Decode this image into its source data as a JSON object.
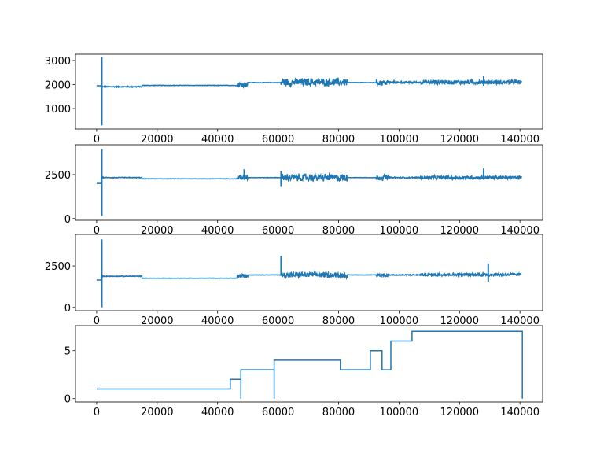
{
  "chart_data": [
    {
      "type": "line",
      "title": "",
      "xlabel": "",
      "ylabel": "",
      "xlim": [
        -7000,
        147500
      ],
      "ylim": [
        150,
        3260
      ],
      "xticks": [
        0,
        20000,
        40000,
        60000,
        80000,
        100000,
        120000,
        140000
      ],
      "yticks": [
        1000,
        2000,
        3000
      ],
      "color": "#1f77b4",
      "grid": false,
      "segments": [
        {
          "x": [
            0,
            1500
          ],
          "level": 1950,
          "noise": 0
        },
        {
          "x": [
            1500,
            15000
          ],
          "level": 1910,
          "noise": 25
        },
        {
          "x": [
            15000,
            46500
          ],
          "level": 1965,
          "noise": 12
        },
        {
          "x": [
            46500,
            50000
          ],
          "level": 2000,
          "noise": 160
        },
        {
          "x": [
            50000,
            61000
          ],
          "level": 2080,
          "noise": 12
        },
        {
          "x": [
            61000,
            83000
          ],
          "level": 2100,
          "noise": 200
        },
        {
          "x": [
            83000,
            92500
          ],
          "level": 2080,
          "noise": 12
        },
        {
          "x": [
            92500,
            96500
          ],
          "level": 2080,
          "noise": 150
        },
        {
          "x": [
            96500,
            107000
          ],
          "level": 2090,
          "noise": 45
        },
        {
          "x": [
            107000,
            140500
          ],
          "level": 2100,
          "noise": 110
        }
      ],
      "spikes": [
        {
          "x": 1700,
          "min": 300,
          "max": 3150
        },
        {
          "x": 128000,
          "min": 1950,
          "max": 2350
        }
      ]
    },
    {
      "type": "line",
      "title": "",
      "xlabel": "",
      "ylabel": "",
      "xlim": [
        -7000,
        147500
      ],
      "ylim": [
        -100,
        4200
      ],
      "xticks": [
        0,
        20000,
        40000,
        60000,
        80000,
        100000,
        120000,
        140000
      ],
      "yticks": [
        0,
        2500
      ],
      "color": "#1f77b4",
      "grid": false,
      "segments": [
        {
          "x": [
            0,
            1500
          ],
          "level": 2000,
          "noise": 0
        },
        {
          "x": [
            1500,
            15000
          ],
          "level": 2330,
          "noise": 25
        },
        {
          "x": [
            15000,
            46500
          ],
          "level": 2260,
          "noise": 12
        },
        {
          "x": [
            46500,
            50000
          ],
          "level": 2350,
          "noise": 200
        },
        {
          "x": [
            50000,
            61000
          ],
          "level": 2330,
          "noise": 12
        },
        {
          "x": [
            61000,
            83000
          ],
          "level": 2330,
          "noise": 250
        },
        {
          "x": [
            83000,
            92500
          ],
          "level": 2330,
          "noise": 12
        },
        {
          "x": [
            92500,
            96500
          ],
          "level": 2330,
          "noise": 200
        },
        {
          "x": [
            96500,
            107000
          ],
          "level": 2330,
          "noise": 45
        },
        {
          "x": [
            107000,
            140500
          ],
          "level": 2330,
          "noise": 120
        }
      ],
      "spikes": [
        {
          "x": 1700,
          "min": 150,
          "max": 3950
        },
        {
          "x": 48800,
          "min": 2200,
          "max": 2800
        },
        {
          "x": 61000,
          "min": 1800,
          "max": 2700
        },
        {
          "x": 128000,
          "min": 2200,
          "max": 2850
        }
      ]
    },
    {
      "type": "line",
      "title": "",
      "xlabel": "",
      "ylabel": "",
      "xlim": [
        -7000,
        147500
      ],
      "ylim": [
        -200,
        4400
      ],
      "xticks": [
        0,
        20000,
        40000,
        60000,
        80000,
        100000,
        120000,
        140000
      ],
      "yticks": [
        0,
        2500
      ],
      "color": "#1f77b4",
      "grid": false,
      "segments": [
        {
          "x": [
            0,
            1500
          ],
          "level": 1650,
          "noise": 0
        },
        {
          "x": [
            1500,
            15000
          ],
          "level": 1880,
          "noise": 25
        },
        {
          "x": [
            15000,
            46500
          ],
          "level": 1760,
          "noise": 12
        },
        {
          "x": [
            46500,
            50000
          ],
          "level": 1900,
          "noise": 150
        },
        {
          "x": [
            50000,
            61000
          ],
          "level": 1960,
          "noise": 12
        },
        {
          "x": [
            61000,
            83000
          ],
          "level": 1960,
          "noise": 200
        },
        {
          "x": [
            83000,
            92500
          ],
          "level": 1960,
          "noise": 12
        },
        {
          "x": [
            92500,
            96500
          ],
          "level": 1960,
          "noise": 150
        },
        {
          "x": [
            96500,
            107000
          ],
          "level": 1960,
          "noise": 40
        },
        {
          "x": [
            107000,
            140500
          ],
          "level": 1980,
          "noise": 110
        }
      ],
      "spikes": [
        {
          "x": 1700,
          "min": 0,
          "max": 4100
        },
        {
          "x": 61000,
          "min": 1900,
          "max": 3100
        },
        {
          "x": 129500,
          "min": 1550,
          "max": 2650
        }
      ]
    },
    {
      "type": "line",
      "title": "",
      "xlabel": "",
      "ylabel": "",
      "xlim": [
        -7000,
        147500
      ],
      "ylim": [
        -0.35,
        7.6
      ],
      "xticks": [
        0,
        20000,
        40000,
        60000,
        80000,
        100000,
        120000,
        140000
      ],
      "yticks": [
        0,
        5
      ],
      "color": "#1f77b4",
      "grid": false,
      "x": [
        0,
        44200,
        44200,
        47700,
        47700,
        47700,
        58700,
        58700,
        58700,
        80600,
        80600,
        90500,
        90500,
        94400,
        94400,
        97300,
        97300,
        104300,
        104300,
        140800,
        140800
      ],
      "y": [
        1,
        1,
        2,
        2,
        0,
        3,
        3,
        0,
        4,
        4,
        3,
        3,
        5,
        5,
        3,
        3,
        6,
        6,
        7,
        7,
        0
      ]
    }
  ]
}
